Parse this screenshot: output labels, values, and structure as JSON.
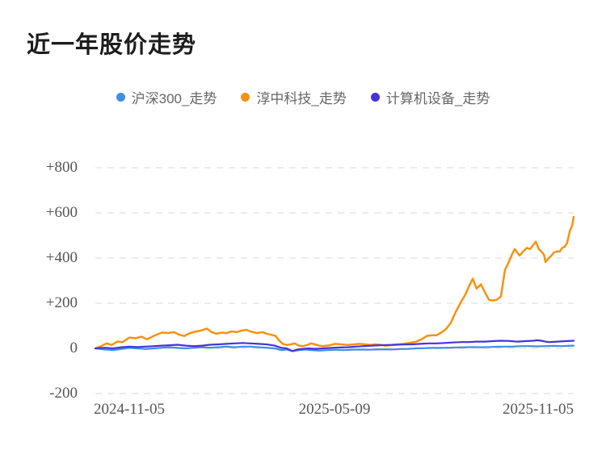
{
  "title": "近一年股价走势",
  "chart_data": {
    "type": "line",
    "title": "近一年股价走势",
    "x_axis": {
      "tick_labels": [
        "2024-11-05",
        "2025-05-09",
        "2025-11-05"
      ],
      "range_dates": [
        "2024-11-05",
        "2025-11-05"
      ]
    },
    "y_axis": {
      "tick_labels": [
        "+800",
        "+600",
        "+400",
        "+200",
        "0",
        "-200"
      ],
      "tick_values": [
        800,
        600,
        400,
        200,
        0,
        -200
      ],
      "ylim": [
        -200,
        800
      ],
      "grid": "dashed"
    },
    "legend_position": "top-center",
    "grid_color": "#ececec",
    "background_color": "#ffffff",
    "series": [
      {
        "name": "沪深300_走势",
        "color": "#3E8EE4",
        "points": [
          [
            0,
            0
          ],
          [
            0.02,
            -5
          ],
          [
            0.037,
            -8
          ],
          [
            0.054,
            -3
          ],
          [
            0.071,
            2
          ],
          [
            0.088,
            0
          ],
          [
            0.105,
            -3
          ],
          [
            0.122,
            0
          ],
          [
            0.139,
            3
          ],
          [
            0.155,
            5
          ],
          [
            0.172,
            2
          ],
          [
            0.189,
            0
          ],
          [
            0.206,
            3
          ],
          [
            0.223,
            5
          ],
          [
            0.24,
            3
          ],
          [
            0.257,
            5
          ],
          [
            0.274,
            8
          ],
          [
            0.291,
            5
          ],
          [
            0.307,
            8
          ],
          [
            0.324,
            8
          ],
          [
            0.341,
            5
          ],
          [
            0.358,
            3
          ],
          [
            0.375,
            0
          ],
          [
            0.389,
            -8
          ],
          [
            0.4,
            -5
          ],
          [
            0.412,
            -12
          ],
          [
            0.426,
            -8
          ],
          [
            0.439,
            -5
          ],
          [
            0.451,
            -8
          ],
          [
            0.468,
            -10
          ],
          [
            0.485,
            -8
          ],
          [
            0.502,
            -6
          ],
          [
            0.519,
            -8
          ],
          [
            0.535,
            -6
          ],
          [
            0.552,
            -5
          ],
          [
            0.569,
            -6
          ],
          [
            0.586,
            -5
          ],
          [
            0.603,
            -4
          ],
          [
            0.62,
            -5
          ],
          [
            0.637,
            -3
          ],
          [
            0.654,
            -2
          ],
          [
            0.671,
            0
          ],
          [
            0.688,
            1
          ],
          [
            0.704,
            2
          ],
          [
            0.721,
            2
          ],
          [
            0.738,
            3
          ],
          [
            0.755,
            4
          ],
          [
            0.772,
            5
          ],
          [
            0.789,
            6
          ],
          [
            0.806,
            5
          ],
          [
            0.823,
            6
          ],
          [
            0.839,
            7
          ],
          [
            0.856,
            8
          ],
          [
            0.873,
            8
          ],
          [
            0.89,
            10
          ],
          [
            0.907,
            10
          ],
          [
            0.924,
            9
          ],
          [
            0.941,
            10
          ],
          [
            0.958,
            11
          ],
          [
            0.975,
            10
          ],
          [
            0.988,
            11
          ],
          [
            1,
            12
          ]
        ]
      },
      {
        "name": "淳中科技_走势",
        "color": "#F79210",
        "points": [
          [
            0,
            0
          ],
          [
            0.012,
            10
          ],
          [
            0.024,
            22
          ],
          [
            0.034,
            15
          ],
          [
            0.046,
            30
          ],
          [
            0.057,
            28
          ],
          [
            0.071,
            48
          ],
          [
            0.084,
            45
          ],
          [
            0.096,
            52
          ],
          [
            0.108,
            40
          ],
          [
            0.122,
            55
          ],
          [
            0.139,
            70
          ],
          [
            0.152,
            68
          ],
          [
            0.164,
            72
          ],
          [
            0.176,
            60
          ],
          [
            0.186,
            55
          ],
          [
            0.198,
            68
          ],
          [
            0.211,
            75
          ],
          [
            0.223,
            80
          ],
          [
            0.233,
            88
          ],
          [
            0.243,
            72
          ],
          [
            0.253,
            65
          ],
          [
            0.265,
            70
          ],
          [
            0.274,
            68
          ],
          [
            0.285,
            75
          ],
          [
            0.296,
            72
          ],
          [
            0.304,
            78
          ],
          [
            0.316,
            82
          ],
          [
            0.324,
            75
          ],
          [
            0.338,
            68
          ],
          [
            0.35,
            72
          ],
          [
            0.358,
            65
          ],
          [
            0.368,
            60
          ],
          [
            0.377,
            55
          ],
          [
            0.383,
            38
          ],
          [
            0.392,
            20
          ],
          [
            0.4,
            15
          ],
          [
            0.409,
            18
          ],
          [
            0.417,
            22
          ],
          [
            0.426,
            12
          ],
          [
            0.434,
            10
          ],
          [
            0.443,
            15
          ],
          [
            0.451,
            22
          ],
          [
            0.459,
            18
          ],
          [
            0.468,
            12
          ],
          [
            0.476,
            10
          ],
          [
            0.49,
            14
          ],
          [
            0.502,
            20
          ],
          [
            0.514,
            18
          ],
          [
            0.527,
            15
          ],
          [
            0.541,
            18
          ],
          [
            0.552,
            20
          ],
          [
            0.564,
            18
          ],
          [
            0.574,
            15
          ],
          [
            0.586,
            18
          ],
          [
            0.598,
            15
          ],
          [
            0.608,
            12
          ],
          [
            0.62,
            15
          ],
          [
            0.632,
            18
          ],
          [
            0.645,
            20
          ],
          [
            0.659,
            25
          ],
          [
            0.671,
            30
          ],
          [
            0.682,
            40
          ],
          [
            0.693,
            55
          ],
          [
            0.703,
            58
          ],
          [
            0.713,
            58
          ],
          [
            0.723,
            70
          ],
          [
            0.733,
            85
          ],
          [
            0.743,
            113
          ],
          [
            0.753,
            160
          ],
          [
            0.764,
            204
          ],
          [
            0.774,
            240
          ],
          [
            0.78,
            270
          ],
          [
            0.789,
            309
          ],
          [
            0.797,
            265
          ],
          [
            0.806,
            284
          ],
          [
            0.814,
            250
          ],
          [
            0.823,
            215
          ],
          [
            0.831,
            212
          ],
          [
            0.839,
            215
          ],
          [
            0.848,
            230
          ],
          [
            0.856,
            345
          ],
          [
            0.865,
            386
          ],
          [
            0.872,
            420
          ],
          [
            0.877,
            440
          ],
          [
            0.882,
            425
          ],
          [
            0.887,
            411
          ],
          [
            0.895,
            430
          ],
          [
            0.902,
            445
          ],
          [
            0.909,
            440
          ],
          [
            0.916,
            460
          ],
          [
            0.921,
            473
          ],
          [
            0.927,
            440
          ],
          [
            0.932,
            430
          ],
          [
            0.938,
            415
          ],
          [
            0.941,
            382
          ],
          [
            0.946,
            395
          ],
          [
            0.953,
            410
          ],
          [
            0.959,
            425
          ],
          [
            0.966,
            430
          ],
          [
            0.971,
            429
          ],
          [
            0.976,
            445
          ],
          [
            0.981,
            450
          ],
          [
            0.986,
            465
          ],
          [
            0.992,
            520
          ],
          [
            0.997,
            545
          ],
          [
            1,
            582
          ]
        ]
      },
      {
        "name": "计算机设备_走势",
        "color": "#4633DC",
        "points": [
          [
            0,
            0
          ],
          [
            0.02,
            3
          ],
          [
            0.037,
            0
          ],
          [
            0.054,
            5
          ],
          [
            0.071,
            8
          ],
          [
            0.088,
            6
          ],
          [
            0.105,
            8
          ],
          [
            0.122,
            10
          ],
          [
            0.139,
            12
          ],
          [
            0.155,
            14
          ],
          [
            0.172,
            16
          ],
          [
            0.189,
            12
          ],
          [
            0.206,
            10
          ],
          [
            0.223,
            12
          ],
          [
            0.24,
            16
          ],
          [
            0.257,
            18
          ],
          [
            0.274,
            20
          ],
          [
            0.291,
            22
          ],
          [
            0.307,
            24
          ],
          [
            0.324,
            22
          ],
          [
            0.341,
            20
          ],
          [
            0.358,
            18
          ],
          [
            0.375,
            12
          ],
          [
            0.389,
            2
          ],
          [
            0.4,
            0
          ],
          [
            0.412,
            -12
          ],
          [
            0.422,
            -5
          ],
          [
            0.434,
            -2
          ],
          [
            0.446,
            0
          ],
          [
            0.459,
            -2
          ],
          [
            0.476,
            0
          ],
          [
            0.493,
            2
          ],
          [
            0.51,
            4
          ],
          [
            0.527,
            5
          ],
          [
            0.544,
            8
          ],
          [
            0.561,
            10
          ],
          [
            0.578,
            12
          ],
          [
            0.595,
            14
          ],
          [
            0.611,
            15
          ],
          [
            0.628,
            16
          ],
          [
            0.645,
            17
          ],
          [
            0.662,
            18
          ],
          [
            0.679,
            20
          ],
          [
            0.696,
            22
          ],
          [
            0.713,
            22
          ],
          [
            0.73,
            24
          ],
          [
            0.747,
            26
          ],
          [
            0.764,
            28
          ],
          [
            0.78,
            28
          ],
          [
            0.797,
            30
          ],
          [
            0.814,
            30
          ],
          [
            0.831,
            32
          ],
          [
            0.848,
            34
          ],
          [
            0.865,
            33
          ],
          [
            0.882,
            30
          ],
          [
            0.899,
            32
          ],
          [
            0.916,
            34
          ],
          [
            0.924,
            36
          ],
          [
            0.932,
            34
          ],
          [
            0.941,
            30
          ],
          [
            0.949,
            28
          ],
          [
            0.966,
            30
          ],
          [
            0.983,
            32
          ],
          [
            1,
            34
          ]
        ]
      }
    ]
  }
}
